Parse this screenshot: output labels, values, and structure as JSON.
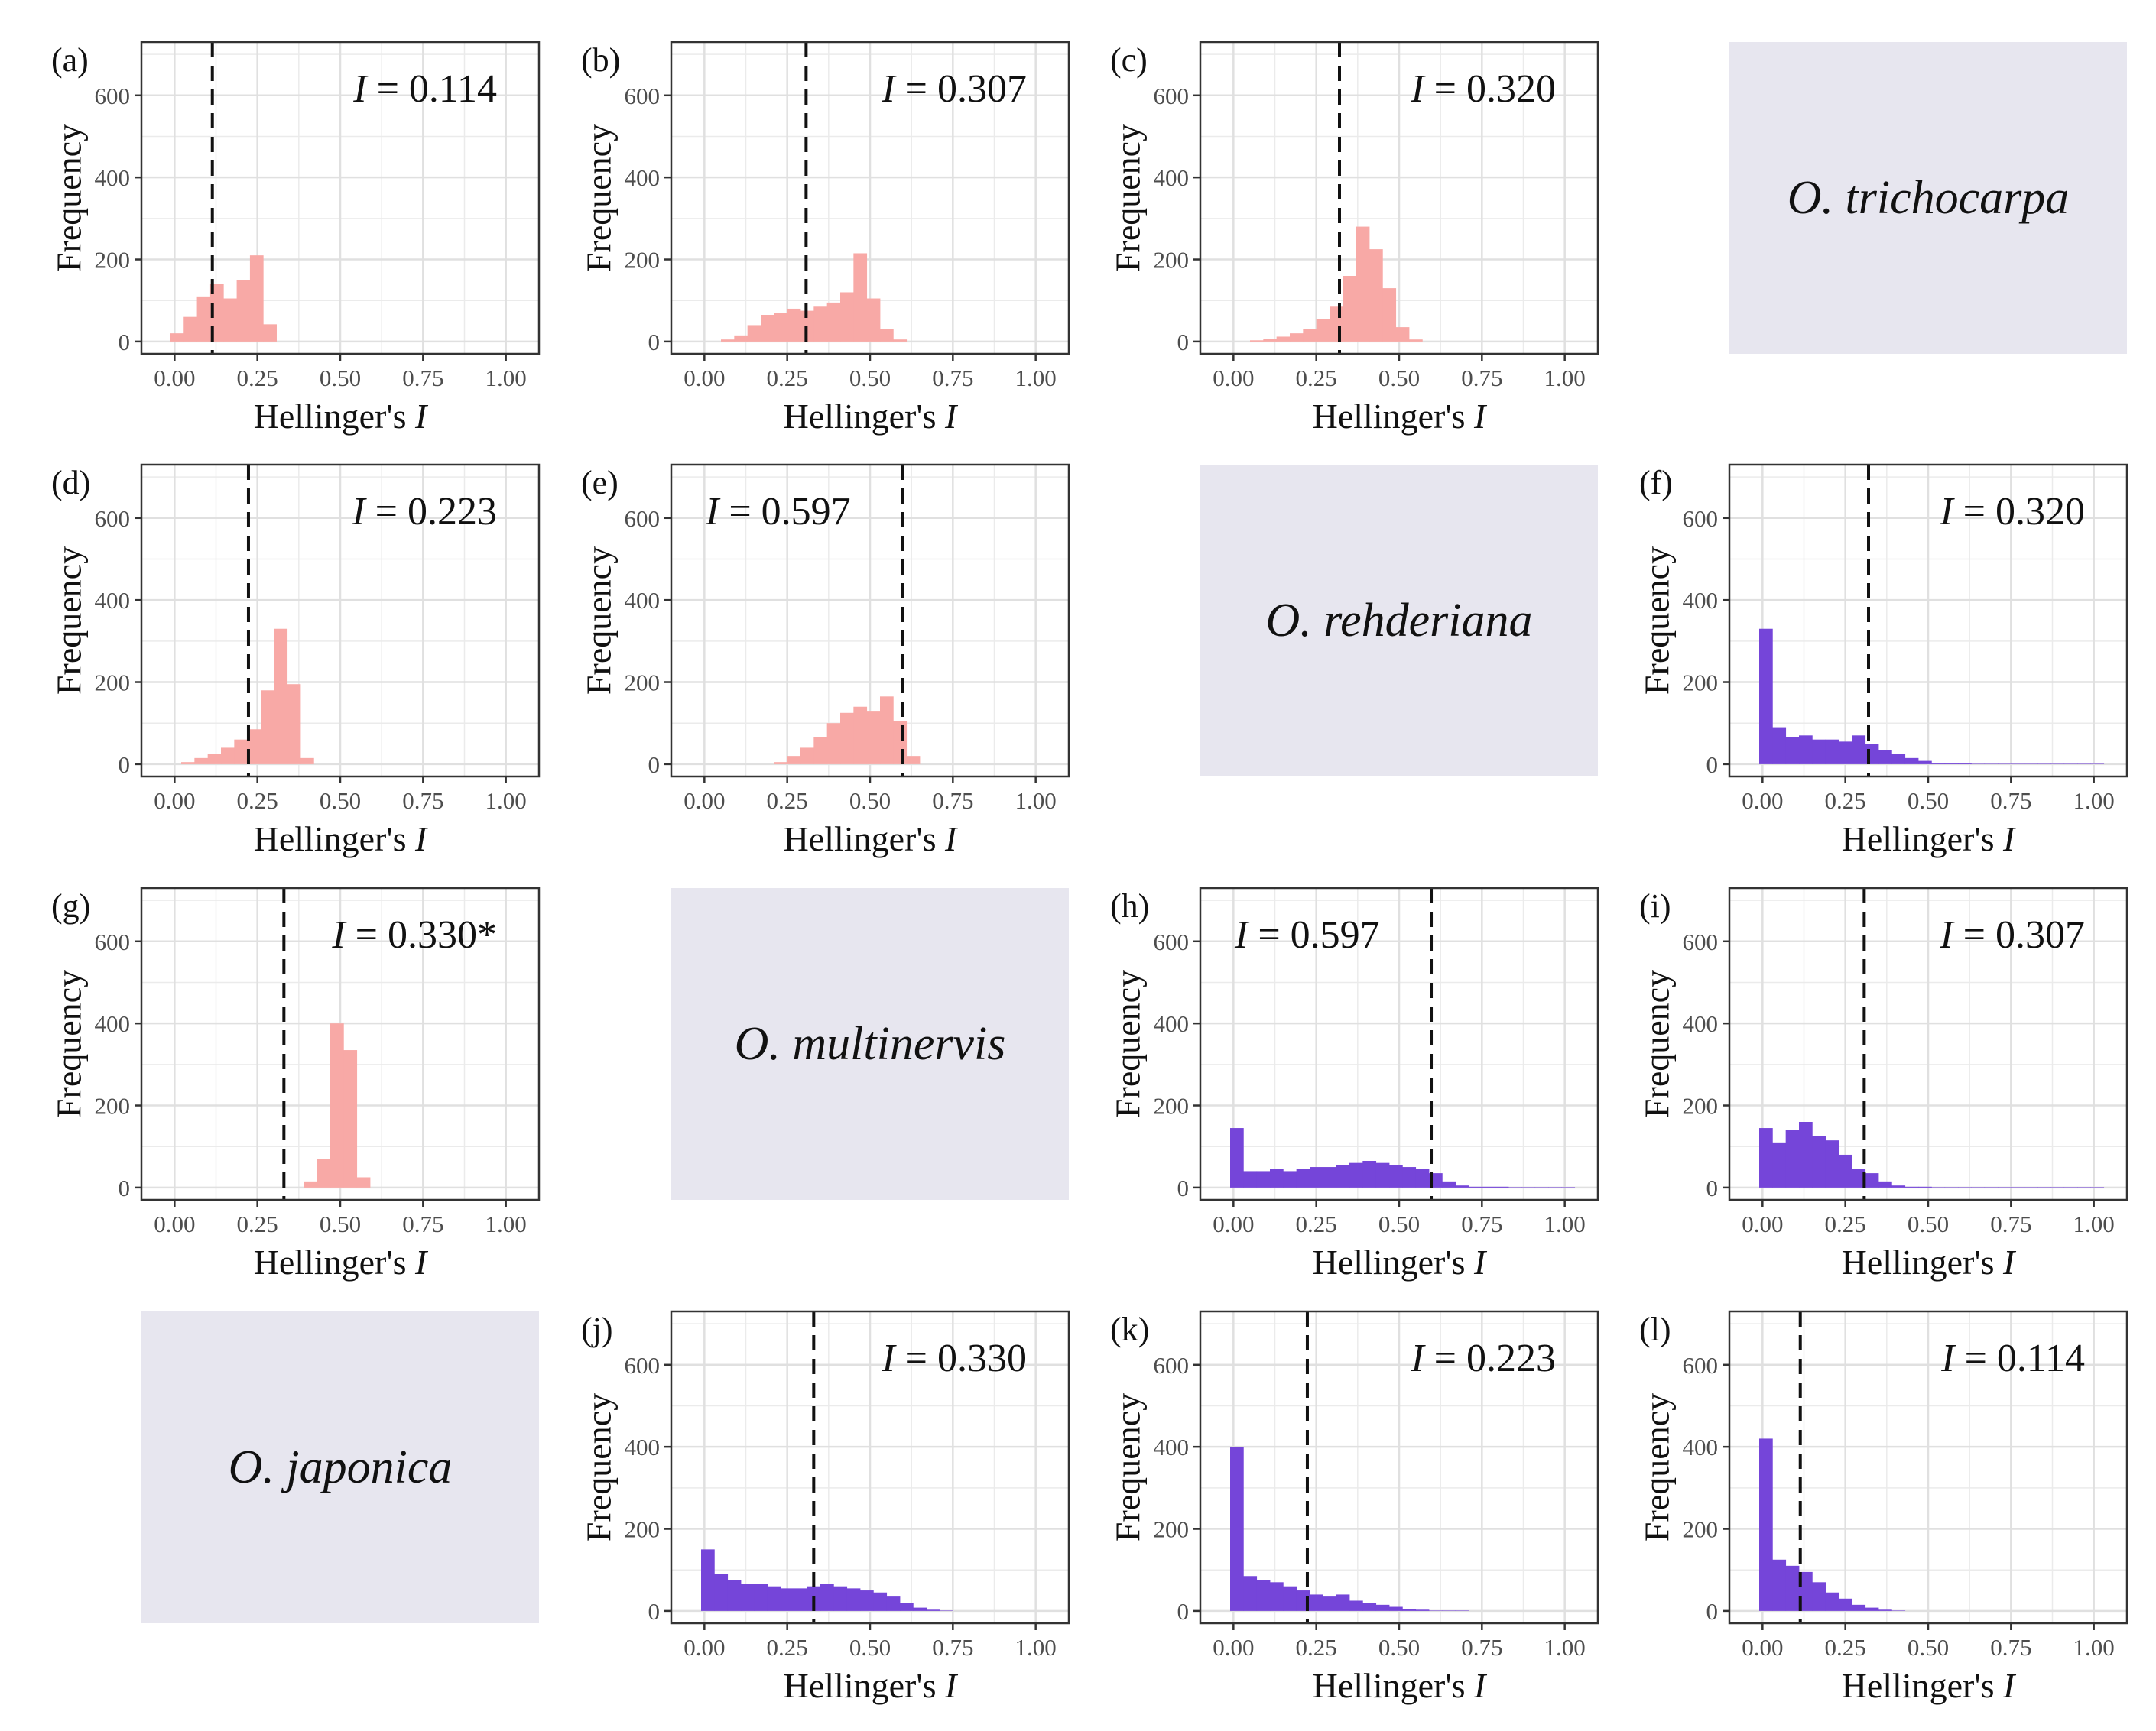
{
  "figure": {
    "x_tick_labels": [
      "0.00",
      "0.25",
      "0.50",
      "0.75",
      "1.00"
    ],
    "y_tick_labels": [
      "0",
      "200",
      "400",
      "600"
    ],
    "x_label_prefix": "Hellinger's ",
    "x_label_italic": "I",
    "y_label": "Frequency",
    "colors": {
      "pink": "#f8a9a6",
      "purple": "#7545d9",
      "species_bg": "#e7e6ef",
      "grid": "#ebebeb",
      "frame": "#333333"
    }
  },
  "species_labels": [
    {
      "row": 0,
      "col": 3,
      "text": "O. trichocarpa"
    },
    {
      "row": 1,
      "col": 2,
      "text": "O. rehderiana"
    },
    {
      "row": 2,
      "col": 1,
      "text": "O. multinervis"
    },
    {
      "row": 3,
      "col": 0,
      "text": "O. japonica"
    }
  ],
  "chart_data": [
    {
      "type": "bar",
      "panel": "(a)",
      "row": 0,
      "col": 0,
      "color": "pink",
      "stat_italic": "I",
      "stat_text": " = 0.114",
      "stat_pos": "right",
      "observed": 0.114,
      "bin_start": -0.0125,
      "bin_width": 0.04,
      "values": [
        20,
        60,
        110,
        140,
        105,
        150,
        210,
        42
      ],
      "xlabel": "Hellinger's I",
      "ylabel": "Frequency",
      "xlim": [
        -0.1,
        1.1
      ],
      "ylim": [
        -30,
        730
      ]
    },
    {
      "type": "bar",
      "panel": "(b)",
      "row": 0,
      "col": 1,
      "color": "pink",
      "stat_italic": "I",
      "stat_text": " = 0.307",
      "stat_pos": "right",
      "observed": 0.307,
      "bin_start": 0.05,
      "bin_width": 0.04,
      "values": [
        5,
        15,
        40,
        65,
        70,
        80,
        75,
        85,
        95,
        120,
        215,
        105,
        30,
        5
      ],
      "xlabel": "Hellinger's I",
      "ylabel": "Frequency",
      "xlim": [
        -0.1,
        1.1
      ],
      "ylim": [
        -30,
        730
      ]
    },
    {
      "type": "bar",
      "panel": "(c)",
      "row": 0,
      "col": 2,
      "color": "pink",
      "stat_italic": "I",
      "stat_text": " = 0.320",
      "stat_pos": "right",
      "observed": 0.32,
      "bin_start": 0.05,
      "bin_width": 0.04,
      "values": [
        3,
        6,
        12,
        20,
        30,
        55,
        85,
        160,
        280,
        225,
        130,
        35,
        5
      ],
      "xlabel": "Hellinger's I",
      "ylabel": "Frequency",
      "xlim": [
        -0.1,
        1.1
      ],
      "ylim": [
        -30,
        730
      ]
    },
    {
      "type": "bar",
      "panel": "(d)",
      "row": 1,
      "col": 0,
      "color": "pink",
      "stat_italic": "I",
      "stat_text": " = 0.223",
      "stat_pos": "right",
      "observed": 0.223,
      "bin_start": 0.02,
      "bin_width": 0.04,
      "values": [
        5,
        15,
        25,
        40,
        60,
        85,
        180,
        330,
        195,
        15
      ],
      "xlabel": "Hellinger's I",
      "ylabel": "Frequency",
      "xlim": [
        -0.1,
        1.1
      ],
      "ylim": [
        -30,
        730
      ]
    },
    {
      "type": "bar",
      "panel": "(e)",
      "row": 1,
      "col": 1,
      "color": "pink",
      "stat_italic": "I",
      "stat_text": " = 0.597",
      "stat_pos": "left",
      "observed": 0.597,
      "bin_start": 0.21,
      "bin_width": 0.04,
      "values": [
        5,
        20,
        40,
        65,
        100,
        125,
        140,
        130,
        165,
        105,
        20
      ],
      "xlabel": "Hellinger's I",
      "ylabel": "Frequency",
      "xlim": [
        -0.1,
        1.1
      ],
      "ylim": [
        -30,
        730
      ]
    },
    {
      "type": "bar",
      "panel": "(f)",
      "row": 1,
      "col": 3,
      "color": "purple",
      "stat_italic": "I",
      "stat_text": " = 0.320",
      "stat_pos": "right",
      "observed": 0.32,
      "bin_start": -0.01,
      "bin_width": 0.04,
      "values": [
        330,
        90,
        65,
        70,
        60,
        60,
        55,
        70,
        50,
        35,
        25,
        15,
        8,
        3,
        2,
        2,
        1,
        1,
        1,
        1,
        1,
        1,
        1,
        1,
        1,
        1
      ],
      "xlabel": "Hellinger's I",
      "ylabel": "Frequency",
      "xlim": [
        -0.1,
        1.1
      ],
      "ylim": [
        -30,
        730
      ]
    },
    {
      "type": "bar",
      "panel": "(g)",
      "row": 2,
      "col": 0,
      "color": "pink",
      "stat_italic": "I",
      "stat_text": " = 0.330*",
      "stat_pos": "right",
      "observed": 0.33,
      "bin_start": 0.39,
      "bin_width": 0.04,
      "values": [
        15,
        70,
        400,
        335,
        25
      ],
      "xlabel": "Hellinger's I",
      "ylabel": "Frequency",
      "xlim": [
        -0.1,
        1.1
      ],
      "ylim": [
        -30,
        730
      ]
    },
    {
      "type": "bar",
      "panel": "(h)",
      "row": 2,
      "col": 2,
      "color": "purple",
      "stat_italic": "I",
      "stat_text": " = 0.597",
      "stat_pos": "left",
      "observed": 0.597,
      "bin_start": -0.01,
      "bin_width": 0.04,
      "values": [
        145,
        40,
        40,
        45,
        40,
        45,
        50,
        50,
        55,
        60,
        65,
        60,
        55,
        50,
        45,
        35,
        15,
        5,
        2,
        2,
        2,
        1,
        1,
        1,
        1,
        1
      ],
      "xlabel": "Hellinger's I",
      "ylabel": "Frequency",
      "xlim": [
        -0.1,
        1.1
      ],
      "ylim": [
        -30,
        730
      ]
    },
    {
      "type": "bar",
      "panel": "(i)",
      "row": 2,
      "col": 3,
      "color": "purple",
      "stat_italic": "I",
      "stat_text": " = 0.307",
      "stat_pos": "right",
      "observed": 0.307,
      "bin_start": -0.01,
      "bin_width": 0.04,
      "values": [
        145,
        110,
        140,
        160,
        125,
        115,
        80,
        45,
        35,
        15,
        5,
        2,
        2,
        1,
        1,
        1,
        1,
        1,
        1,
        1,
        1,
        1,
        1,
        1,
        1,
        1
      ],
      "xlabel": "Hellinger's I",
      "ylabel": "Frequency",
      "xlim": [
        -0.1,
        1.1
      ],
      "ylim": [
        -30,
        730
      ]
    },
    {
      "type": "bar",
      "panel": "(j)",
      "row": 3,
      "col": 1,
      "color": "purple",
      "stat_italic": "I",
      "stat_text": " = 0.330",
      "stat_pos": "right",
      "observed": 0.33,
      "bin_start": -0.01,
      "bin_width": 0.04,
      "values": [
        150,
        90,
        75,
        65,
        65,
        60,
        55,
        55,
        60,
        65,
        60,
        55,
        50,
        45,
        35,
        20,
        8,
        3,
        1
      ],
      "xlabel": "Hellinger's I",
      "ylabel": "Frequency",
      "xlim": [
        -0.1,
        1.1
      ],
      "ylim": [
        -30,
        730
      ]
    },
    {
      "type": "bar",
      "panel": "(k)",
      "row": 3,
      "col": 2,
      "color": "purple",
      "stat_italic": "I",
      "stat_text": " = 0.223",
      "stat_pos": "right",
      "observed": 0.223,
      "bin_start": -0.01,
      "bin_width": 0.04,
      "values": [
        400,
        85,
        75,
        70,
        60,
        50,
        40,
        35,
        40,
        25,
        20,
        15,
        10,
        5,
        3,
        1,
        1,
        1
      ],
      "xlabel": "Hellinger's I",
      "ylabel": "Frequency",
      "xlim": [
        -0.1,
        1.1
      ],
      "ylim": [
        -30,
        730
      ]
    },
    {
      "type": "bar",
      "panel": "(l)",
      "row": 3,
      "col": 3,
      "color": "purple",
      "stat_italic": "I",
      "stat_text": " = 0.114",
      "stat_pos": "right",
      "observed": 0.114,
      "bin_start": -0.01,
      "bin_width": 0.04,
      "values": [
        420,
        125,
        110,
        95,
        70,
        45,
        30,
        15,
        8,
        3,
        1
      ],
      "xlabel": "Hellinger's I",
      "ylabel": "Frequency",
      "xlim": [
        -0.1,
        1.1
      ],
      "ylim": [
        -30,
        730
      ]
    }
  ]
}
